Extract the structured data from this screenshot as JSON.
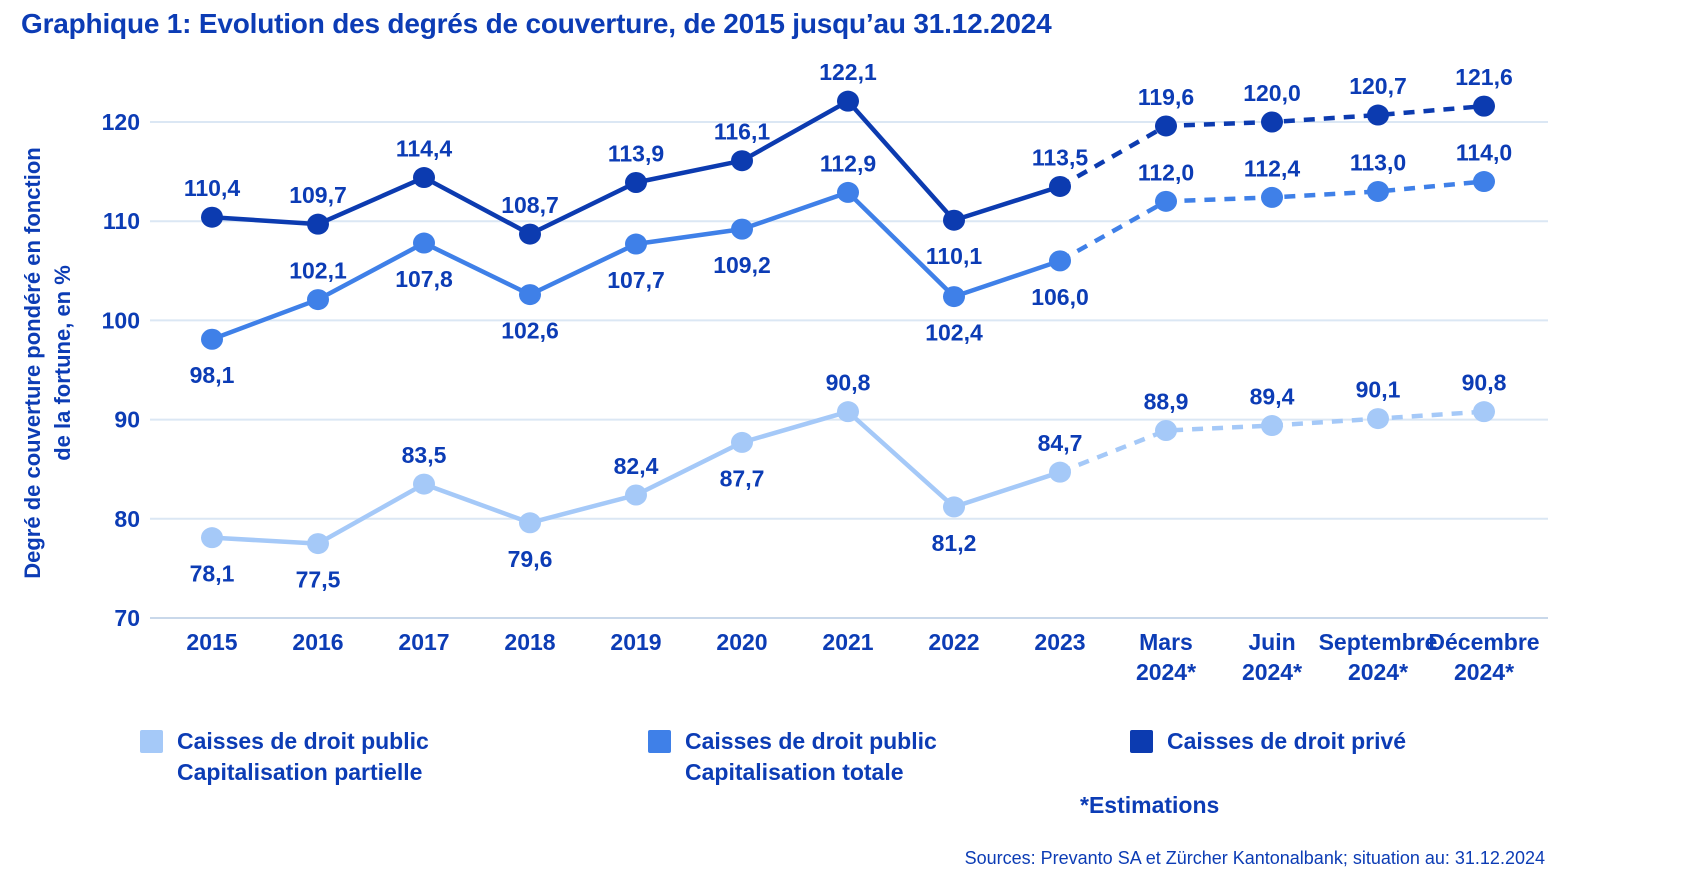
{
  "title": "Graphique 1: Evolution des degrés de couverture, de 2015 jusqu’au 31.12.2024",
  "y_axis": {
    "label_line1": "Degré de couverture pondéré en fonction",
    "label_line2": "de la fortune, en %"
  },
  "chart_data": {
    "type": "line",
    "title": "Graphique 1: Evolution des degrés de couverture, de 2015 jusqu’au 31.12.2024",
    "xlabel": "",
    "ylabel": "Degré de couverture pondéré en fonction de la fortune, en %",
    "ylim": [
      70,
      125
    ],
    "y_ticks": [
      70,
      80,
      90,
      100,
      110,
      120
    ],
    "grid": "horizontal",
    "legend_position": "bottom",
    "categories": [
      "2015",
      "2016",
      "2017",
      "2018",
      "2019",
      "2020",
      "2021",
      "2022",
      "2023",
      "Mars 2024*",
      "Juin 2024*",
      "Septembre 2024*",
      "Décembre 2024*"
    ],
    "category_lines": [
      [
        "2015"
      ],
      [
        "2016"
      ],
      [
        "2017"
      ],
      [
        "2018"
      ],
      [
        "2019"
      ],
      [
        "2020"
      ],
      [
        "2021"
      ],
      [
        "2022"
      ],
      [
        "2023"
      ],
      [
        "Mars",
        "2024*"
      ],
      [
        "Juin",
        "2024*"
      ],
      [
        "Septembre",
        "2024*"
      ],
      [
        "Décembre",
        "2024*"
      ]
    ],
    "solid_until_index": 8,
    "estimate_note": "*Estimations",
    "series": [
      {
        "id": "partielle",
        "name": "Caisses de droit public Capitalisation partielle",
        "color": "#a5c9f8",
        "values": [
          78.1,
          77.5,
          83.5,
          79.6,
          82.4,
          87.7,
          90.8,
          81.2,
          84.7,
          88.9,
          89.4,
          90.1,
          90.8
        ],
        "labels": [
          "78,1",
          "77,5",
          "83,5",
          "79,6",
          "82,4",
          "87,7",
          "90,8",
          "81,2",
          "84,7",
          "88,9",
          "89,4",
          "90,1",
          "90,8"
        ],
        "label_pos": [
          "below",
          "below",
          "above",
          "below",
          "above",
          "below",
          "above",
          "below",
          "above",
          "above",
          "above",
          "above",
          "above"
        ]
      },
      {
        "id": "totale",
        "name": "Caisses de droit public Capitalisation totale",
        "color": "#3f80e8",
        "values": [
          98.1,
          102.1,
          107.8,
          102.6,
          107.7,
          109.2,
          112.9,
          102.4,
          106.0,
          112.0,
          112.4,
          113.0,
          114.0
        ],
        "labels": [
          "98,1",
          "102,1",
          "107,8",
          "102,6",
          "107,7",
          "109,2",
          "112,9",
          "102,4",
          "106,0",
          "112,0",
          "112,4",
          "113,0",
          "114,0"
        ],
        "label_pos": [
          "below",
          "above",
          "below",
          "below",
          "below",
          "below",
          "above",
          "below",
          "below",
          "above",
          "above",
          "above",
          "above"
        ]
      },
      {
        "id": "prive",
        "name": "Caisses de droit privé",
        "color": "#0c3bb0",
        "values": [
          110.4,
          109.7,
          114.4,
          108.7,
          113.9,
          116.1,
          122.1,
          110.1,
          113.5,
          119.6,
          120.0,
          120.7,
          121.6
        ],
        "labels": [
          "110,4",
          "109,7",
          "114,4",
          "108,7",
          "113,9",
          "116,1",
          "122,1",
          "110,1",
          "113,5",
          "119,6",
          "120,0",
          "120,7",
          "121,6"
        ],
        "label_pos": [
          "above",
          "above",
          "above",
          "above",
          "above",
          "above",
          "above",
          "below",
          "above",
          "above",
          "above",
          "above",
          "above"
        ]
      }
    ]
  },
  "legend": {
    "items": [
      {
        "label_line1": "Caisses de droit public",
        "label_line2": "Capitalisation partielle",
        "color": "#a5c9f8"
      },
      {
        "label_line1": "Caisses de droit public",
        "label_line2": "Capitalisation totale",
        "color": "#3f80e8"
      },
      {
        "label_line1": "Caisses de droit privé",
        "label_line2": "",
        "color": "#0c3bb0"
      }
    ],
    "estimations_note": "*Estimations"
  },
  "footer": {
    "sources": "Sources: Prevanto SA et Zürcher Kantonalbank; situation au: 31.12.2024"
  },
  "colors": {
    "text_blue": "#0c3cb5",
    "gridline": "#dbe7f4",
    "axisline": "#c9d8ea"
  }
}
